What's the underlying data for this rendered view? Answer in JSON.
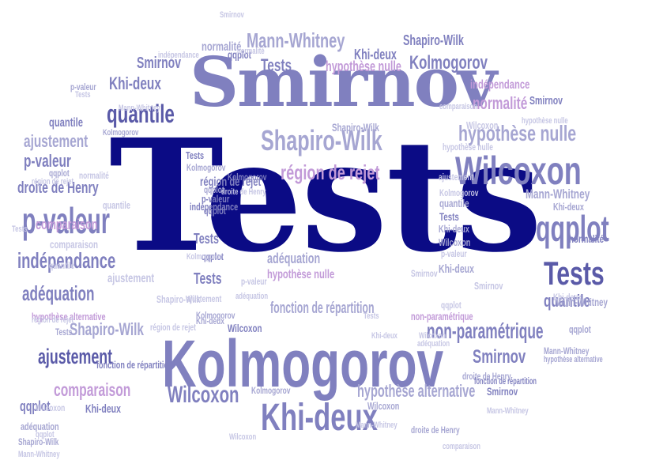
{
  "palette": {
    "navy": "#0b0b85",
    "dark": "#5a5aa8",
    "mid": "#8080bf",
    "light": "#a6a6d2",
    "pale": "#c6c6e4",
    "faint": "#dcdcee",
    "pink": "#c29ad8"
  },
  "words": [
    "Tests",
    "Smirnov",
    "Kolmogorov",
    "Wilcoxon",
    "Khi-deux",
    "qqplot",
    "p-valeur",
    "Tests",
    "Shapiro-Wilk",
    "quantile",
    "Mann-Whitney",
    "indépendance",
    "région de rejet",
    "hypothèse nulle",
    "adéquation",
    "ajustement",
    "comparaison",
    "non-paramétrique",
    "Smirnov",
    "Wilcoxon",
    "Kolmogorov",
    "Shapiro-Wilk",
    "Tests",
    "quantile",
    "p-valeur",
    "Khi-deux",
    "droite de Henry",
    "fonction de répartition",
    "fonction de répartition",
    "normalité",
    "normalité",
    "comparaison",
    "hypothèse alternative",
    "hypothèse alternative",
    "Mann-Whitney",
    "Mann-Whitney",
    "Khi-deux",
    "Smirnov",
    "qqplot",
    "qqplot",
    "Tests",
    "Tests",
    "ajustement",
    "adéquation",
    "quantile",
    "indépendance",
    "Wilcoxon",
    "Kolmogorov",
    "Khi-deux",
    "p-valeur",
    "droite de Henry",
    "Shapiro-Wilk",
    "région de rejet",
    "hypothèse nulle",
    "qqplot",
    "qqplot",
    "Tests",
    "p-valeur",
    "comparaison",
    "Smirnov",
    "non-paramétrique",
    "Shapiro-Wilk",
    "Wilcoxon",
    "région de rejet",
    "Khi-deux",
    "Khi-deux",
    "Tests",
    "quantile",
    "Kolmogorov",
    "Wilcoxon",
    "p-valeur",
    "normalité",
    "région de rejet",
    "hypothèse nulle",
    "Wilcoxon",
    "Mann-Whitney",
    "Smirnov",
    "Kolmogorov",
    "adéquation",
    "ajustement",
    "fonction de répartition",
    "qqplot",
    "Tests",
    "Mann-Whitney",
    "Kolmogorov",
    "ajustement",
    "Khi-deux",
    "Tests",
    "quantile",
    "adéquation",
    "hypothèse nulle",
    "hypothèse alternative",
    "Wilcoxon",
    "qqplot",
    "qqplot",
    "normalité",
    "Shapiro-Wilk",
    "Smirnov",
    "ajustement",
    "qqplot",
    "Kolmogorov",
    "Khi-deux",
    "droite de Henry",
    "Khi-deux",
    "quantile",
    "Mann-Whitney",
    "Tests",
    "p-valeur",
    "Smirnov",
    "adéquation",
    "région de rejet",
    "hypothèse nulle",
    "indépendance",
    "indépendance",
    "normalité",
    "Kolmogorov",
    "Smirnov",
    "Wilcoxon",
    "Mann-Whitney",
    "Wilcoxon",
    "comparaison",
    "droite de Henry",
    "Khi-deux",
    "qqplot",
    "Shapiro-Wilk",
    "Tests",
    "Kolmogorov",
    "comparaison",
    "Mann-Whitney"
  ]
}
